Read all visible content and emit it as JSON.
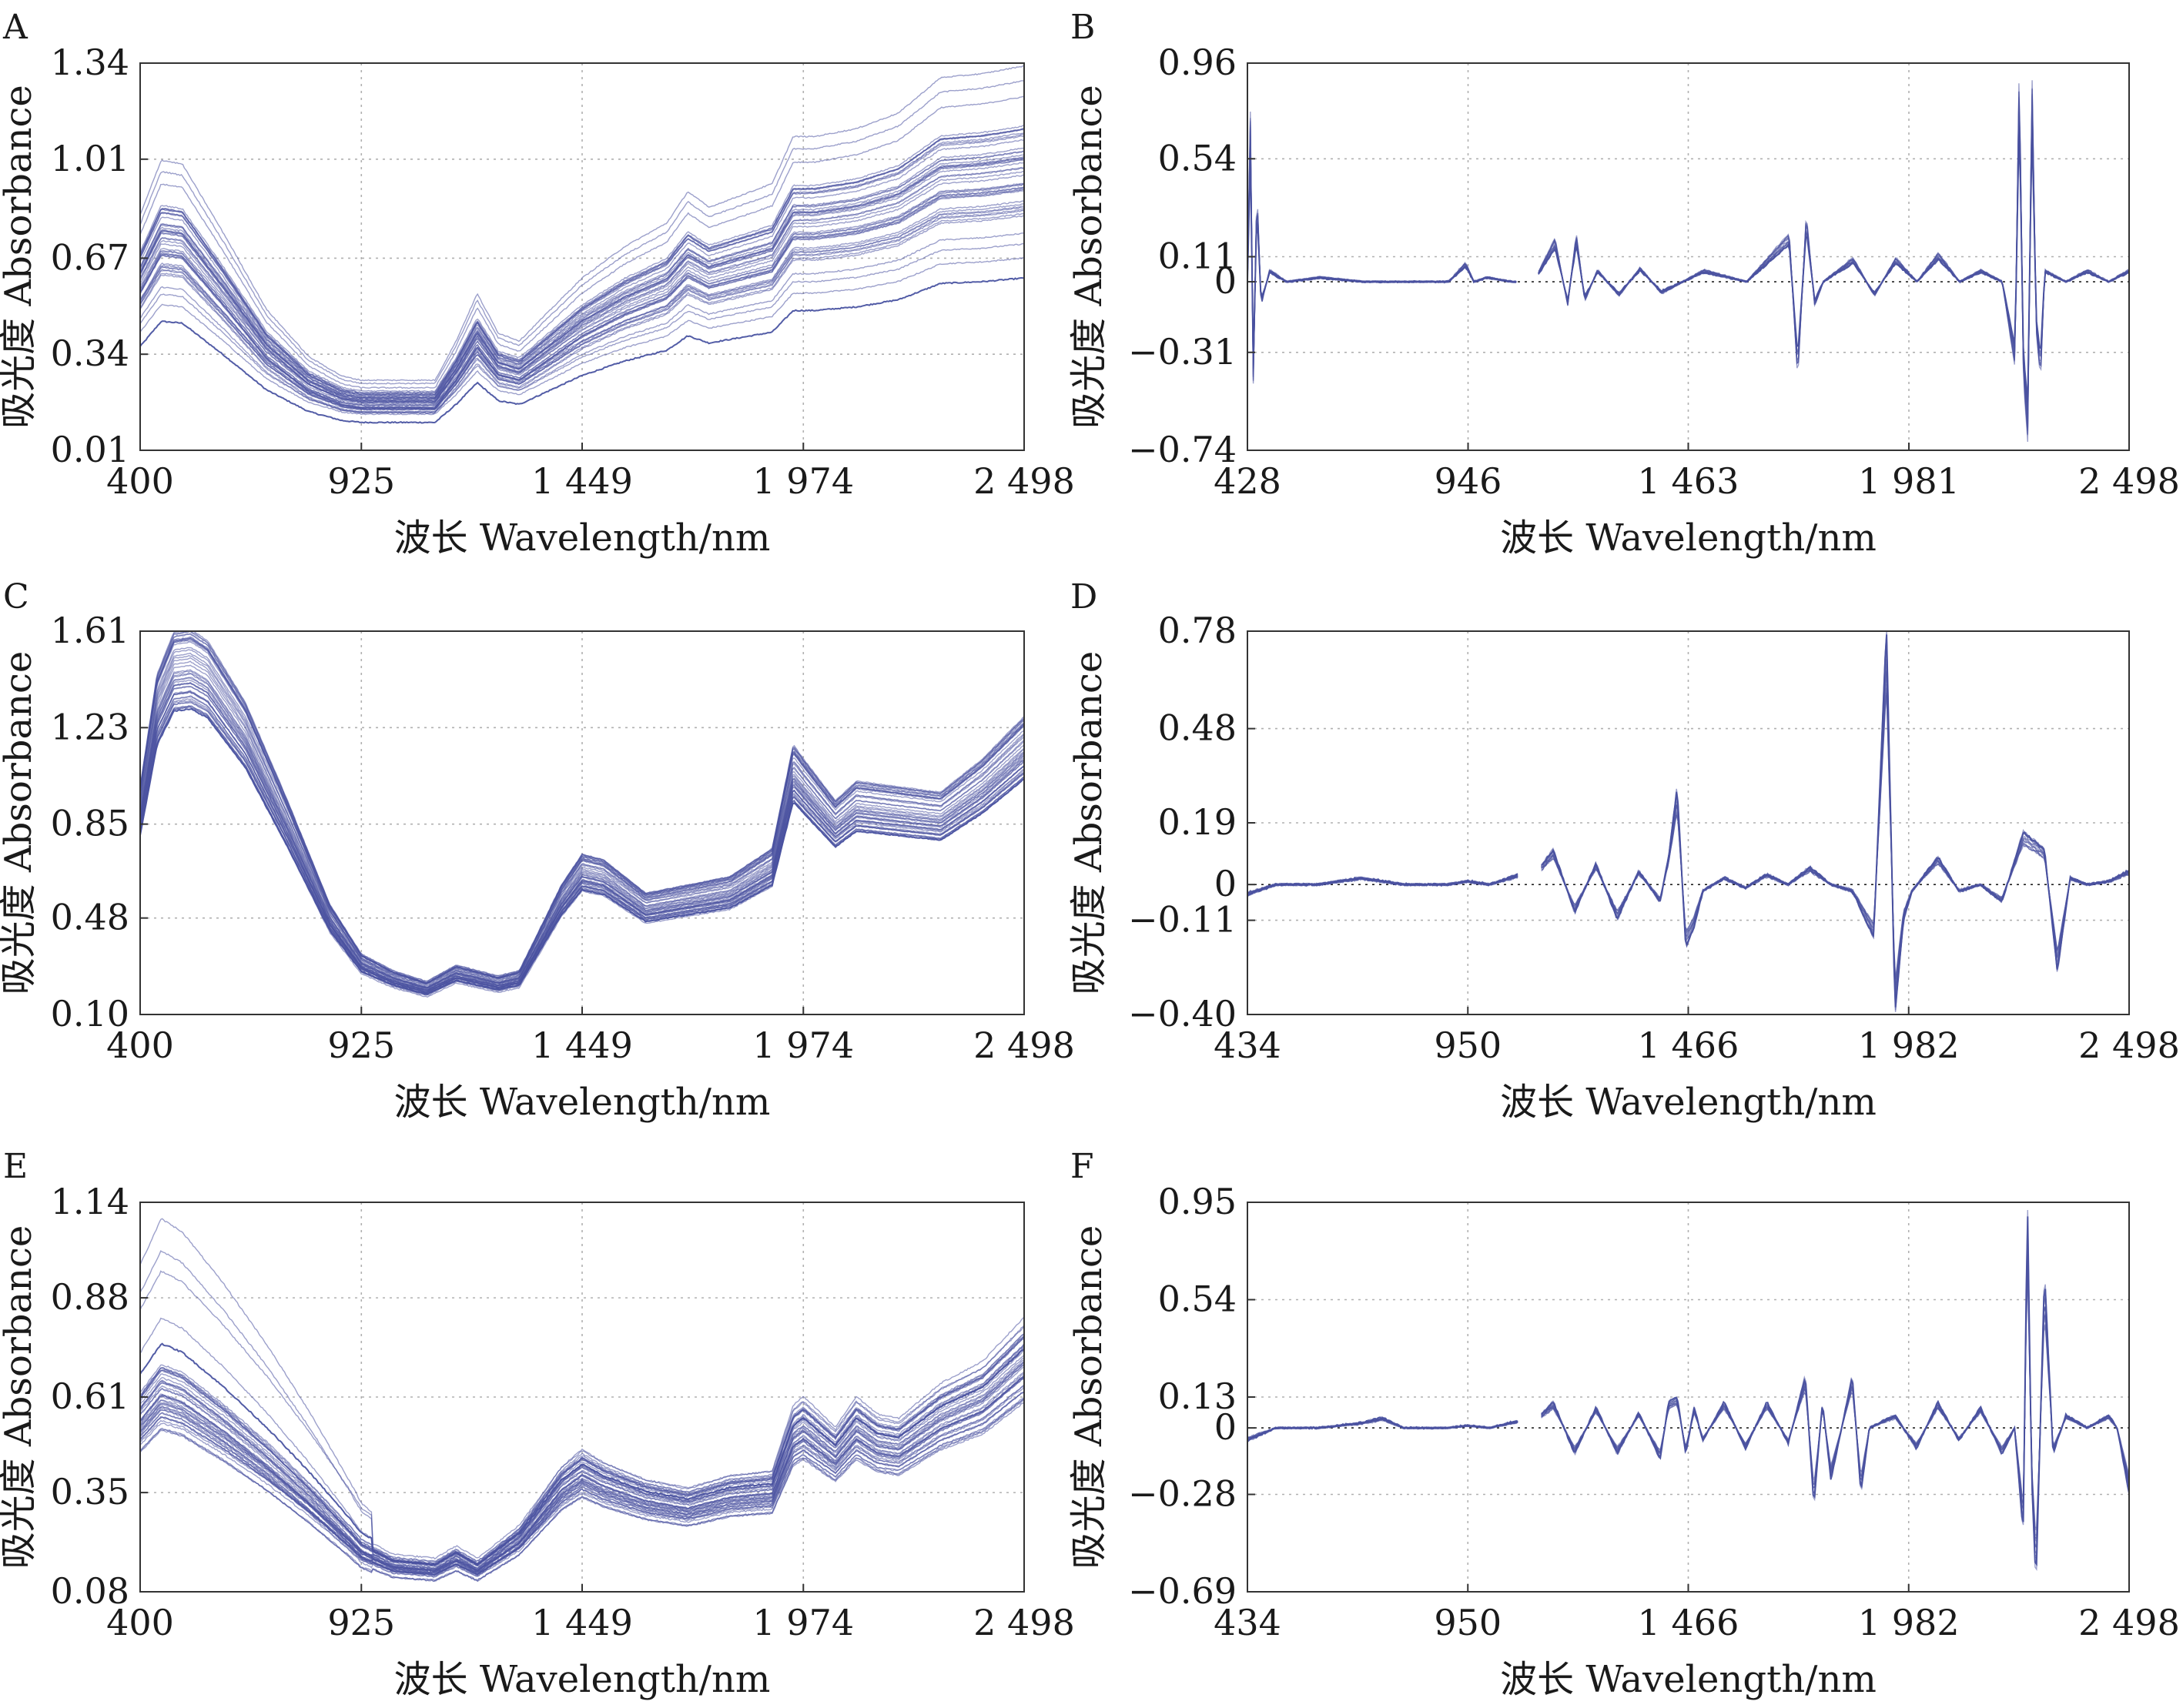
{
  "chart_data": [
    {
      "panel": "A",
      "type": "line",
      "xlabel": "波长 Wavelength/nm",
      "ylabel": "吸光度 Absorbance",
      "xlim": [
        400,
        2498
      ],
      "ylim": [
        0.01,
        1.34
      ],
      "xticks": [
        400,
        925,
        1449,
        1974,
        2498
      ],
      "xtick_labels": [
        "400",
        "925",
        "1 449",
        "1 974",
        "2 498"
      ],
      "yticks": [
        0.01,
        0.34,
        0.67,
        1.01,
        1.34
      ],
      "ytick_labels": [
        "0.01",
        "0.34",
        "0.67",
        "1.01",
        "1.34"
      ],
      "color": "#4a52a0",
      "series": [
        {
          "x": [
            400,
            450,
            500,
            600,
            700,
            800,
            880,
            925,
            1000,
            1100,
            1150,
            1200,
            1250,
            1300,
            1449,
            1550,
            1650,
            1700,
            1750,
            1850,
            1900,
            1950,
            2000,
            2100,
            2200,
            2300,
            2400,
            2498
          ],
          "y": [
            0.6,
            0.74,
            0.73,
            0.55,
            0.36,
            0.24,
            0.19,
            0.18,
            0.18,
            0.18,
            0.28,
            0.4,
            0.3,
            0.28,
            0.44,
            0.52,
            0.58,
            0.66,
            0.62,
            0.66,
            0.68,
            0.8,
            0.8,
            0.82,
            0.86,
            0.95,
            0.96,
            0.98
          ]
        }
      ]
    },
    {
      "panel": "B",
      "type": "line",
      "xlabel": "波长 Wavelength/nm",
      "ylabel": "吸光度 Absorbance",
      "xlim": [
        428,
        2498
      ],
      "ylim": [
        -0.74,
        0.96
      ],
      "xticks": [
        428,
        946,
        1463,
        1981,
        2498
      ],
      "xtick_labels": [
        "428",
        "946",
        "1 463",
        "1 981",
        "2 498"
      ],
      "yticks": [
        -0.74,
        -0.31,
        0,
        0.11,
        0.54,
        0.96
      ],
      "ytick_labels": [
        "−0.74",
        "−0.31",
        "0",
        "0.11",
        "0.54",
        "0.96"
      ],
      "color": "#4a52a0",
      "series": [
        {
          "x": [
            428,
            435,
            442,
            450,
            460,
            480,
            520,
            600,
            700,
            800,
            900,
            940,
            960,
            990,
            1050,
            1100,
            1150,
            1180,
            1200,
            1220,
            1250,
            1300,
            1350,
            1400,
            1450,
            1500,
            1600,
            1700,
            1720,
            1740,
            1760,
            1780,
            1850,
            1900,
            1950,
            2000,
            2050,
            2100,
            2150,
            2200,
            2230,
            2240,
            2250,
            2260,
            2270,
            2280,
            2290,
            2300,
            2350,
            2400,
            2450,
            2498
          ],
          "y": [
            0.0,
            0.7,
            -0.45,
            0.4,
            -0.1,
            0.05,
            0.0,
            0.02,
            0.0,
            0.0,
            0.0,
            0.08,
            0.0,
            0.02,
            0.0,
            0.0,
            0.18,
            -0.1,
            0.2,
            -0.08,
            0.05,
            -0.06,
            0.06,
            -0.05,
            0.0,
            0.05,
            0.0,
            0.2,
            -0.4,
            0.28,
            -0.1,
            0.0,
            0.1,
            -0.06,
            0.1,
            0.0,
            0.12,
            0.0,
            0.05,
            0.0,
            -0.35,
            0.9,
            -0.4,
            -0.65,
            0.85,
            -0.2,
            -0.4,
            0.05,
            0.0,
            0.05,
            0.0,
            0.05
          ]
        }
      ]
    },
    {
      "panel": "C",
      "type": "line",
      "xlabel": "波长 Wavelength/nm",
      "ylabel": "吸光度 Absorbance",
      "xlim": [
        400,
        2498
      ],
      "ylim": [
        0.1,
        1.61
      ],
      "xticks": [
        400,
        925,
        1449,
        1974,
        2498
      ],
      "xtick_labels": [
        "400",
        "925",
        "1 449",
        "1 974",
        "2 498"
      ],
      "yticks": [
        0.1,
        0.48,
        0.85,
        1.23,
        1.61
      ],
      "ytick_labels": [
        "0.10",
        "0.48",
        "0.85",
        "1.23",
        "1.61"
      ],
      "color": "#4a52a0",
      "series": [
        {
          "x": [
            400,
            440,
            480,
            520,
            560,
            650,
            750,
            850,
            925,
            1000,
            1080,
            1150,
            1200,
            1250,
            1300,
            1400,
            1449,
            1500,
            1550,
            1600,
            1700,
            1800,
            1900,
            1950,
            1974,
            2050,
            2100,
            2200,
            2300,
            2400,
            2498
          ],
          "y": [
            0.9,
            1.3,
            1.45,
            1.46,
            1.42,
            1.2,
            0.85,
            0.48,
            0.3,
            0.24,
            0.2,
            0.26,
            0.24,
            0.22,
            0.24,
            0.55,
            0.66,
            0.64,
            0.58,
            0.52,
            0.55,
            0.58,
            0.68,
            1.05,
            1.0,
            0.85,
            0.92,
            0.9,
            0.88,
            1.0,
            1.15
          ]
        }
      ]
    },
    {
      "panel": "D",
      "type": "line",
      "xlabel": "波长 Wavelength/nm",
      "ylabel": "吸光度 Absorbance",
      "xlim": [
        434,
        2498
      ],
      "ylim": [
        -0.4,
        0.78
      ],
      "xticks": [
        434,
        950,
        1466,
        1982,
        2498
      ],
      "xtick_labels": [
        "434",
        "950",
        "1 466",
        "1 982",
        "2 498"
      ],
      "yticks": [
        -0.4,
        -0.11,
        0,
        0.19,
        0.48,
        0.78
      ],
      "ytick_labels": [
        "−0.40",
        "−0.11",
        "0",
        "0.19",
        "0.48",
        "0.78"
      ],
      "color": "#4a52a0",
      "series": [
        {
          "x": [
            434,
            500,
            600,
            700,
            800,
            900,
            950,
            1000,
            1120,
            1150,
            1200,
            1250,
            1300,
            1350,
            1400,
            1420,
            1440,
            1460,
            1480,
            1500,
            1550,
            1600,
            1650,
            1700,
            1750,
            1800,
            1850,
            1900,
            1930,
            1950,
            1970,
            1990,
            2050,
            2100,
            2150,
            2200,
            2250,
            2300,
            2330,
            2360,
            2400,
            2450,
            2498
          ],
          "y": [
            -0.03,
            0.0,
            0.0,
            0.02,
            0.0,
            0.0,
            0.01,
            0.0,
            0.05,
            0.1,
            -0.08,
            0.06,
            -0.1,
            0.04,
            -0.05,
            0.08,
            0.28,
            -0.18,
            -0.12,
            -0.02,
            0.02,
            -0.01,
            0.03,
            0.0,
            0.05,
            0.0,
            -0.02,
            -0.15,
            0.74,
            -0.37,
            -0.1,
            -0.02,
            0.08,
            -0.02,
            0.0,
            -0.05,
            0.15,
            0.1,
            -0.25,
            0.02,
            0.0,
            0.01,
            0.04
          ]
        }
      ]
    },
    {
      "panel": "E",
      "type": "line",
      "xlabel": "波长 Wavelength/nm",
      "ylabel": "吸光度 Absorbance",
      "xlim": [
        400,
        2498
      ],
      "ylim": [
        0.08,
        1.14
      ],
      "xticks": [
        400,
        925,
        1449,
        1974,
        2498
      ],
      "xtick_labels": [
        "400",
        "925",
        "1 449",
        "1 974",
        "2 498"
      ],
      "yticks": [
        0.08,
        0.35,
        0.61,
        0.88,
        1.14
      ],
      "ytick_labels": [
        "0.08",
        "0.35",
        "0.61",
        "0.88",
        "1.14"
      ],
      "color": "#4a52a0",
      "series": [
        {
          "x": [
            400,
            450,
            500,
            600,
            700,
            800,
            900,
            925,
            1000,
            1100,
            1150,
            1200,
            1250,
            1300,
            1400,
            1449,
            1500,
            1600,
            1700,
            1800,
            1900,
            1950,
            1974,
            2050,
            2100,
            2150,
            2200,
            2300,
            2400,
            2498
          ],
          "y": [
            0.55,
            0.62,
            0.6,
            0.52,
            0.43,
            0.33,
            0.22,
            0.19,
            0.15,
            0.14,
            0.17,
            0.14,
            0.18,
            0.22,
            0.36,
            0.4,
            0.37,
            0.33,
            0.31,
            0.34,
            0.35,
            0.5,
            0.52,
            0.45,
            0.52,
            0.48,
            0.47,
            0.55,
            0.6,
            0.7
          ]
        }
      ]
    },
    {
      "panel": "F",
      "type": "line",
      "xlabel": "波长 Wavelength/nm",
      "ylabel": "吸光度 Absorbance",
      "xlim": [
        434,
        2498
      ],
      "ylim": [
        -0.69,
        0.95
      ],
      "xticks": [
        434,
        950,
        1466,
        1982,
        2498
      ],
      "xtick_labels": [
        "434",
        "950",
        "1 466",
        "1 982",
        "2 498"
      ],
      "yticks": [
        -0.69,
        -0.28,
        0,
        0.13,
        0.54,
        0.95
      ],
      "ytick_labels": [
        "−0.69",
        "−0.28",
        "0",
        "0.13",
        "0.54",
        "0.95"
      ],
      "color": "#4a52a0",
      "series": [
        {
          "x": [
            434,
            500,
            600,
            700,
            750,
            800,
            900,
            950,
            1000,
            1120,
            1150,
            1200,
            1250,
            1300,
            1350,
            1400,
            1420,
            1440,
            1460,
            1480,
            1500,
            1550,
            1600,
            1650,
            1700,
            1740,
            1760,
            1780,
            1800,
            1850,
            1870,
            1890,
            1950,
            2000,
            2050,
            2100,
            2150,
            2200,
            2230,
            2250,
            2260,
            2270,
            2280,
            2300,
            2320,
            2350,
            2400,
            2450,
            2470,
            2498
          ],
          "y": [
            -0.05,
            0.0,
            0.0,
            0.02,
            0.04,
            0.0,
            0.0,
            0.01,
            0.0,
            0.05,
            0.1,
            -0.1,
            0.08,
            -0.1,
            0.06,
            -0.12,
            0.1,
            0.12,
            -0.1,
            0.08,
            -0.05,
            0.1,
            -0.08,
            0.1,
            -0.06,
            0.2,
            -0.3,
            0.1,
            -0.2,
            0.2,
            -0.25,
            0.0,
            0.05,
            -0.08,
            0.1,
            -0.05,
            0.08,
            -0.1,
            0.0,
            -0.4,
            0.88,
            -0.2,
            -0.6,
            0.6,
            -0.1,
            0.05,
            0.0,
            0.05,
            0.0,
            -0.25
          ]
        }
      ]
    }
  ]
}
